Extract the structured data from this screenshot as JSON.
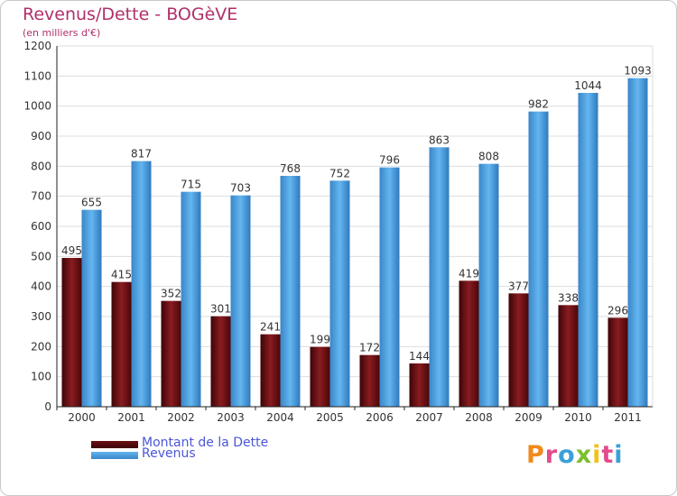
{
  "header": {
    "title": "Revenus/Dette - BOGèVE",
    "subtitle": "(en milliers d'€)"
  },
  "colors": {
    "title": "#b0306a",
    "dette": "#6b0f12",
    "revenus": "#4aa3e2",
    "legend_text": "#4a57d6",
    "grid": "#dddddd",
    "axis": "#222222"
  },
  "chart_data": {
    "type": "bar",
    "title": "Revenus/Dette - BOGèVE",
    "ylabel": "(en milliers d'€)",
    "xlabel": "",
    "categories": [
      "2000",
      "2001",
      "2002",
      "2003",
      "2004",
      "2005",
      "2006",
      "2007",
      "2008",
      "2009",
      "2010",
      "2011"
    ],
    "series": [
      {
        "name": "Montant de la Dette",
        "values": [
          495,
          415,
          352,
          301,
          241,
          199,
          172,
          144,
          419,
          377,
          338,
          296
        ]
      },
      {
        "name": "Revenus",
        "values": [
          655,
          817,
          715,
          703,
          768,
          752,
          796,
          863,
          808,
          982,
          1044,
          1093
        ]
      }
    ],
    "ylim": [
      0,
      1200
    ],
    "yticks": [
      0,
      100,
      200,
      300,
      400,
      500,
      600,
      700,
      800,
      900,
      1000,
      1100,
      1200
    ],
    "grid": true,
    "legend_position": "bottom-left"
  },
  "legend": {
    "items": [
      {
        "label": "Montant de la Dette"
      },
      {
        "label": "Revenus"
      }
    ]
  },
  "logo": {
    "text": "Proxiti"
  }
}
